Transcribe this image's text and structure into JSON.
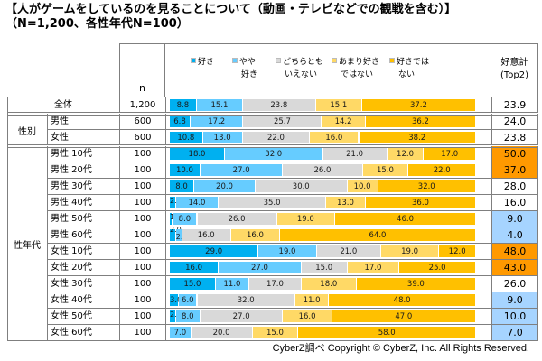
{
  "title": "【人がゲームをしているのを見ることについて（動画・テレビなどでの観戦を含む）】",
  "subtitle": "（N=1,200、各性年代N=100）",
  "header": {
    "n_label": "n",
    "top2_label_line1": "好意計",
    "top2_label_line2": "(Top2)"
  },
  "colors": {
    "suki": "#00b0f0",
    "yaya_suki": "#66ccff",
    "dochira": "#d9d9d9",
    "amari": "#ffd966",
    "suki_dewa_nai": "#ffc000",
    "highlight_high": "#ff9900",
    "highlight_low": "#a6d4ff"
  },
  "groups": {
    "gender": "性別",
    "gender_age": "性年代"
  },
  "footer": "CyberZ調べ Copyright © CyberZ, Inc. All Rights Reserved.",
  "chart_data": {
    "type": "bar",
    "orientation": "horizontal-stacked-100",
    "title": "【人がゲームをしているのを見ることについて（動画・テレビなどでの観戦を含む）】",
    "subtitle": "（N=1,200、各性年代N=100）",
    "xlabel": "",
    "ylabel": "",
    "xlim": [
      0,
      100
    ],
    "legend_position": "top",
    "legend": [
      {
        "name": "好き",
        "line1": "好き",
        "line2": "",
        "color": "#00b0f0"
      },
      {
        "name": "やや好き",
        "line1": "やや",
        "line2": "好き",
        "color": "#66ccff"
      },
      {
        "name": "どちらともいえない",
        "line1": "どちらとも",
        "line2": "いえない",
        "color": "#d9d9d9"
      },
      {
        "name": "あまり好きではない",
        "line1": "あまり好き",
        "line2": "ではない",
        "color": "#ffd966"
      },
      {
        "name": "好きではない",
        "line1": "好きでは",
        "line2": "ない",
        "color": "#ffc000"
      }
    ],
    "categories": [
      "全体",
      "男性",
      "女性",
      "男性 10代",
      "男性 20代",
      "男性 30代",
      "男性 40代",
      "男性 50代",
      "男性 60代",
      "女性 10代",
      "女性 20代",
      "女性 30代",
      "女性 40代",
      "女性 50代",
      "女性 60代"
    ],
    "n": [
      "1,200",
      "600",
      "600",
      "100",
      "100",
      "100",
      "100",
      "100",
      "100",
      "100",
      "100",
      "100",
      "100",
      "100",
      "100"
    ],
    "series": [
      {
        "name": "好き",
        "values": [
          8.8,
          6.8,
          10.8,
          18.0,
          10.0,
          8.0,
          2.0,
          1.0,
          2.0,
          29.0,
          16.0,
          15.0,
          3.0,
          2.0,
          0.0
        ]
      },
      {
        "name": "やや好き",
        "values": [
          15.1,
          17.2,
          13.0,
          32.0,
          27.0,
          20.0,
          14.0,
          8.0,
          2.0,
          19.0,
          27.0,
          11.0,
          6.0,
          8.0,
          7.0
        ]
      },
      {
        "name": "どちらともいえない",
        "values": [
          23.8,
          25.7,
          22.0,
          21.0,
          26.0,
          30.0,
          35.0,
          26.0,
          16.0,
          21.0,
          15.0,
          17.0,
          32.0,
          27.0,
          20.0
        ]
      },
      {
        "name": "あまり好きではない",
        "values": [
          15.1,
          14.2,
          16.0,
          12.0,
          15.0,
          10.0,
          13.0,
          19.0,
          16.0,
          19.0,
          17.0,
          18.0,
          11.0,
          16.0,
          15.0
        ]
      },
      {
        "name": "好きではない",
        "values": [
          37.2,
          36.2,
          38.2,
          17.0,
          22.0,
          32.0,
          36.0,
          46.0,
          64.0,
          12.0,
          25.0,
          39.0,
          48.0,
          47.0,
          58.0
        ]
      }
    ],
    "top2": [
      "23.9",
      "24.0",
      "23.8",
      "50.0",
      "37.0",
      "28.0",
      "16.0",
      "9.0",
      "4.0",
      "48.0",
      "43.0",
      "26.0",
      "9.0",
      "10.0",
      "7.0"
    ],
    "top2_highlight": [
      "none",
      "none",
      "none",
      "high",
      "high",
      "none",
      "none",
      "low",
      "low",
      "high",
      "high",
      "none",
      "low",
      "low",
      "low"
    ]
  }
}
